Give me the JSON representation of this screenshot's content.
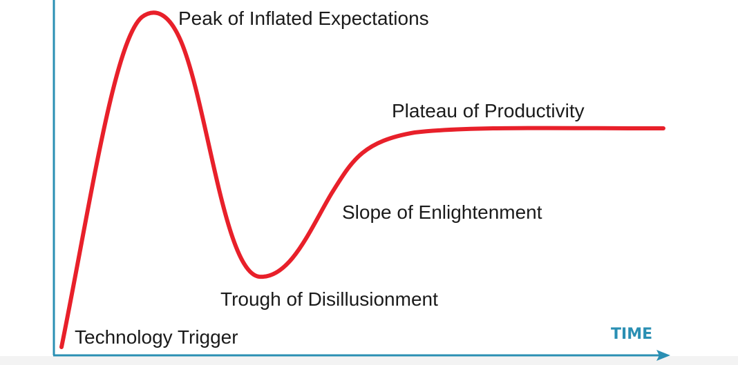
{
  "diagram": {
    "axis_color": "#2a8fb3",
    "curve_color": "#e8202a",
    "x_axis_label": "TIME",
    "phases": [
      {
        "id": "trigger",
        "label": "Technology Trigger"
      },
      {
        "id": "peak",
        "label": "Peak of Inflated Expectations"
      },
      {
        "id": "trough",
        "label": "Trough of Disillusionment"
      },
      {
        "id": "slope",
        "label": "Slope of Enlightenment"
      },
      {
        "id": "plateau",
        "label": "Plateau of Productivity"
      }
    ]
  }
}
